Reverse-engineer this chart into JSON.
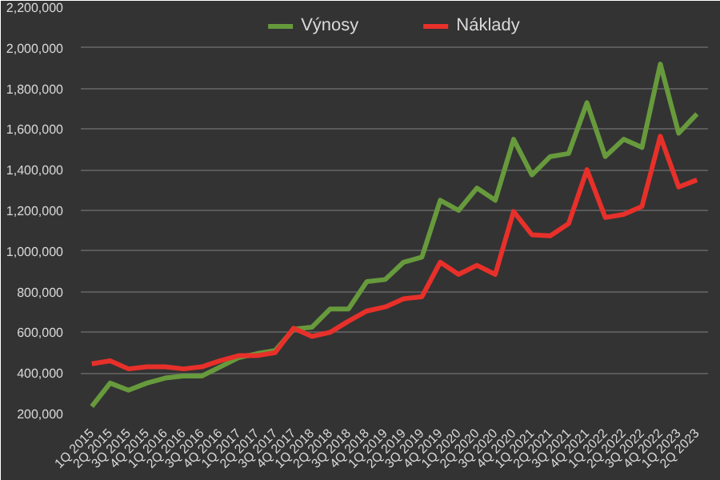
{
  "chart_data": {
    "type": "line",
    "categories": [
      "1Q 2015",
      "2Q 2015",
      "3Q 2015",
      "4Q 2015",
      "1Q 2016",
      "2Q 2016",
      "3Q 2016",
      "4Q 2016",
      "1Q 2017",
      "2Q 2017",
      "3Q 2017",
      "4Q 2017",
      "1Q 2018",
      "2Q 2018",
      "3Q 2018",
      "4Q 2018",
      "1Q 2019",
      "2Q 2019",
      "3Q 2019",
      "4Q 2019",
      "1Q 2020",
      "2Q 2020",
      "3Q 2020",
      "4Q 2020",
      "1Q 2021",
      "2Q 2021",
      "3Q 2021",
      "4Q 2021",
      "1Q 2022",
      "2Q 2022",
      "3Q 2022",
      "4Q 2022",
      "1Q 2023",
      "2Q 2023"
    ],
    "series": [
      {
        "name": "Výnosy",
        "color": "#679a3c",
        "values": [
          235000,
          350000,
          315000,
          350000,
          375000,
          385000,
          385000,
          430000,
          475000,
          495000,
          510000,
          615000,
          625000,
          715000,
          715000,
          850000,
          860000,
          945000,
          970000,
          1250000,
          1200000,
          1310000,
          1250000,
          1550000,
          1375000,
          1465000,
          1480000,
          1730000,
          1465000,
          1550000,
          1510000,
          1920000,
          1580000,
          1675000
        ]
      },
      {
        "name": "Náklady",
        "color": "#e8302a",
        "values": [
          445000,
          460000,
          420000,
          430000,
          430000,
          420000,
          430000,
          460000,
          485000,
          485000,
          500000,
          620000,
          580000,
          600000,
          655000,
          705000,
          725000,
          765000,
          775000,
          945000,
          885000,
          930000,
          885000,
          1195000,
          1080000,
          1075000,
          1135000,
          1400000,
          1165000,
          1180000,
          1220000,
          1565000,
          1315000,
          1350000
        ]
      }
    ],
    "ylim": [
      200000,
      2200000
    ],
    "yticks": [
      {
        "value": 200000,
        "label": "200,000"
      },
      {
        "value": 400000,
        "label": "400,000"
      },
      {
        "value": 600000,
        "label": "600,000"
      },
      {
        "value": 800000,
        "label": "800,000"
      },
      {
        "value": 1000000,
        "label": "1,000,000"
      },
      {
        "value": 1200000,
        "label": "1,200,000"
      },
      {
        "value": 1400000,
        "label": "1,400,000"
      },
      {
        "value": 1600000,
        "label": "1,600,000"
      },
      {
        "value": 1800000,
        "label": "1,800,000"
      },
      {
        "value": 2000000,
        "label": "2,000,000"
      },
      {
        "value": 2200000,
        "label": "2,200,000"
      }
    ],
    "grid": "y",
    "legend": "top",
    "marker": "none",
    "line_style": "solid"
  }
}
